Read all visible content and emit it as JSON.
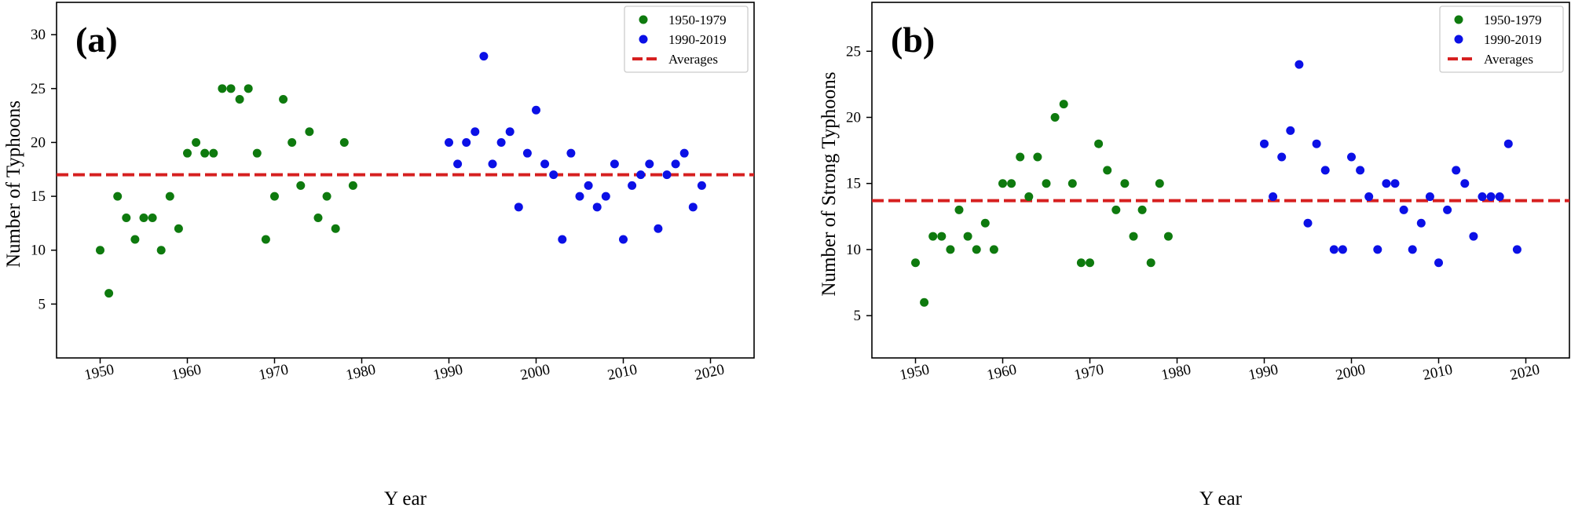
{
  "chart_data": [
    {
      "type": "scatter",
      "panel_label": "(a)",
      "xlabel": "Y ear",
      "ylabel": "Number of Typhoons",
      "xlim": [
        1945,
        2025
      ],
      "ylim": [
        0,
        33
      ],
      "xticks": [
        1950,
        1960,
        1970,
        1980,
        1990,
        2000,
        2010,
        2020
      ],
      "yticks": [
        5,
        10,
        15,
        20,
        25,
        30
      ],
      "legend_position": "top-right",
      "series": [
        {
          "name": "1950-1979",
          "color": "#0e7a0e",
          "x": [
            1950,
            1951,
            1952,
            1953,
            1954,
            1955,
            1956,
            1957,
            1958,
            1959,
            1960,
            1961,
            1962,
            1963,
            1964,
            1965,
            1966,
            1967,
            1968,
            1969,
            1970,
            1971,
            1972,
            1973,
            1974,
            1975,
            1976,
            1977,
            1978,
            1979
          ],
          "y": [
            10,
            6,
            15,
            13,
            11,
            13,
            13,
            10,
            15,
            12,
            19,
            20,
            19,
            19,
            25,
            25,
            24,
            25,
            19,
            11,
            15,
            24,
            20,
            16,
            21,
            13,
            15,
            12,
            20,
            16
          ]
        },
        {
          "name": "1990-2019",
          "color": "#0b10e6",
          "x": [
            1990,
            1991,
            1992,
            1993,
            1994,
            1995,
            1996,
            1997,
            1998,
            1999,
            2000,
            2001,
            2002,
            2003,
            2004,
            2005,
            2006,
            2007,
            2008,
            2009,
            2010,
            2011,
            2012,
            2013,
            2014,
            2015,
            2016,
            2017,
            2018,
            2019
          ],
          "y": [
            20,
            18,
            20,
            21,
            28,
            18,
            20,
            21,
            14,
            19,
            23,
            18,
            17,
            11,
            19,
            15,
            16,
            14,
            15,
            18,
            11,
            16,
            17,
            18,
            12,
            17,
            18,
            19,
            14,
            16
          ]
        }
      ],
      "average": {
        "name": "Averages",
        "value": 17,
        "color": "#d62020"
      }
    },
    {
      "type": "scatter",
      "panel_label": "(b)",
      "xlabel": "Y ear",
      "ylabel": "Number of Strong Typhoons",
      "xlim": [
        1945,
        2025
      ],
      "ylim": [
        1.8,
        28.7
      ],
      "xticks": [
        1950,
        1960,
        1970,
        1980,
        1990,
        2000,
        2010,
        2020
      ],
      "yticks": [
        5,
        10,
        15,
        20,
        25
      ],
      "legend_position": "top-right",
      "series": [
        {
          "name": "1950-1979",
          "color": "#0e7a0e",
          "x": [
            1950,
            1951,
            1952,
            1953,
            1954,
            1955,
            1956,
            1957,
            1958,
            1959,
            1960,
            1961,
            1962,
            1963,
            1964,
            1965,
            1966,
            1967,
            1968,
            1969,
            1970,
            1971,
            1972,
            1973,
            1974,
            1975,
            1976,
            1977,
            1978,
            1979
          ],
          "y": [
            9,
            6,
            11,
            11,
            10,
            13,
            11,
            10,
            12,
            10,
            15,
            15,
            17,
            14,
            17,
            15,
            20,
            21,
            15,
            9,
            9,
            18,
            16,
            13,
            15,
            11,
            13,
            9,
            15,
            11
          ]
        },
        {
          "name": "1990-2019",
          "color": "#0b10e6",
          "x": [
            1990,
            1991,
            1992,
            1993,
            1994,
            1995,
            1996,
            1997,
            1998,
            1999,
            2000,
            2001,
            2002,
            2003,
            2004,
            2005,
            2006,
            2007,
            2008,
            2009,
            2010,
            2011,
            2012,
            2013,
            2014,
            2015,
            2016,
            2017,
            2018,
            2019
          ],
          "y": [
            18,
            14,
            17,
            19,
            24,
            12,
            18,
            16,
            10,
            10,
            17,
            16,
            14,
            10,
            15,
            15,
            13,
            10,
            12,
            14,
            9,
            13,
            16,
            15,
            11,
            14,
            14,
            14,
            18,
            10
          ]
        }
      ],
      "average": {
        "name": "Averages",
        "value": 13.7,
        "color": "#d62020"
      }
    }
  ]
}
